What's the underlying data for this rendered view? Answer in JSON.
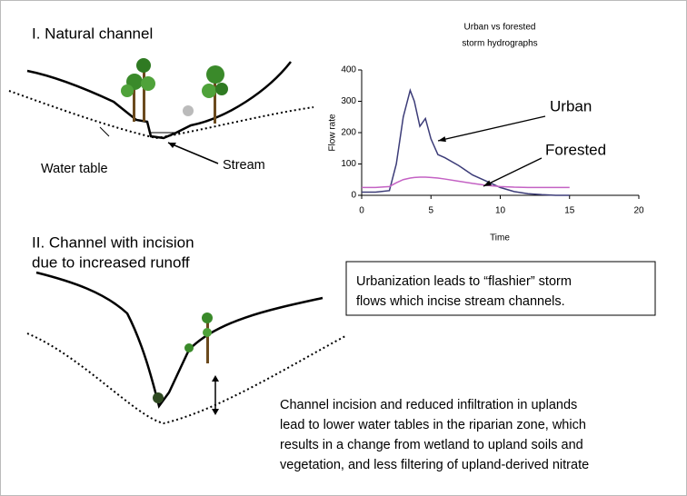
{
  "panel_1": {
    "title": "I. Natural channel",
    "labels": [
      "Water table",
      "Stream"
    ]
  },
  "panel_2": {
    "title": [
      "II.  Channel with incision",
      "due to increased runoff"
    ]
  },
  "callout": [
    "Urbanization leads to “flashier” storm",
    "flows which incise stream channels."
  ],
  "caption": [
    "Channel incision and reduced infiltration in uplands",
    "lead to lower water tables in the riparian zone, which",
    "results in a change from wetland to upland soils and",
    "vegetation, and less filtering of upland-derived nitrate"
  ],
  "chart_data": {
    "type": "line",
    "title": [
      "Urban vs forested",
      "storm hydrographs"
    ],
    "xlabel": "Time",
    "ylabel": "Flow rate",
    "x": [
      0,
      1,
      2,
      2.5,
      3,
      3.5,
      3.8,
      4.2,
      4.6,
      5,
      5.5,
      6,
      7,
      8,
      9,
      10,
      11,
      12,
      13,
      14,
      15
    ],
    "series": [
      {
        "name": "Urban",
        "color": "#3c3c78",
        "values": [
          10,
          10,
          15,
          100,
          250,
          335,
          300,
          220,
          245,
          180,
          130,
          120,
          95,
          65,
          45,
          25,
          12,
          5,
          2,
          0,
          0
        ]
      },
      {
        "name": "Forested",
        "color": "#c462c4",
        "values": [
          25,
          25,
          28,
          40,
          50,
          55,
          57,
          58,
          58,
          57,
          55,
          52,
          45,
          38,
          32,
          28,
          26,
          25,
          25,
          25,
          25
        ]
      }
    ],
    "xlim": [
      0,
      20
    ],
    "xticks": [
      0,
      5,
      10,
      15,
      20
    ],
    "ylim": [
      0,
      400
    ],
    "yticks": [
      0,
      100,
      200,
      300,
      400
    ],
    "grid": false
  }
}
